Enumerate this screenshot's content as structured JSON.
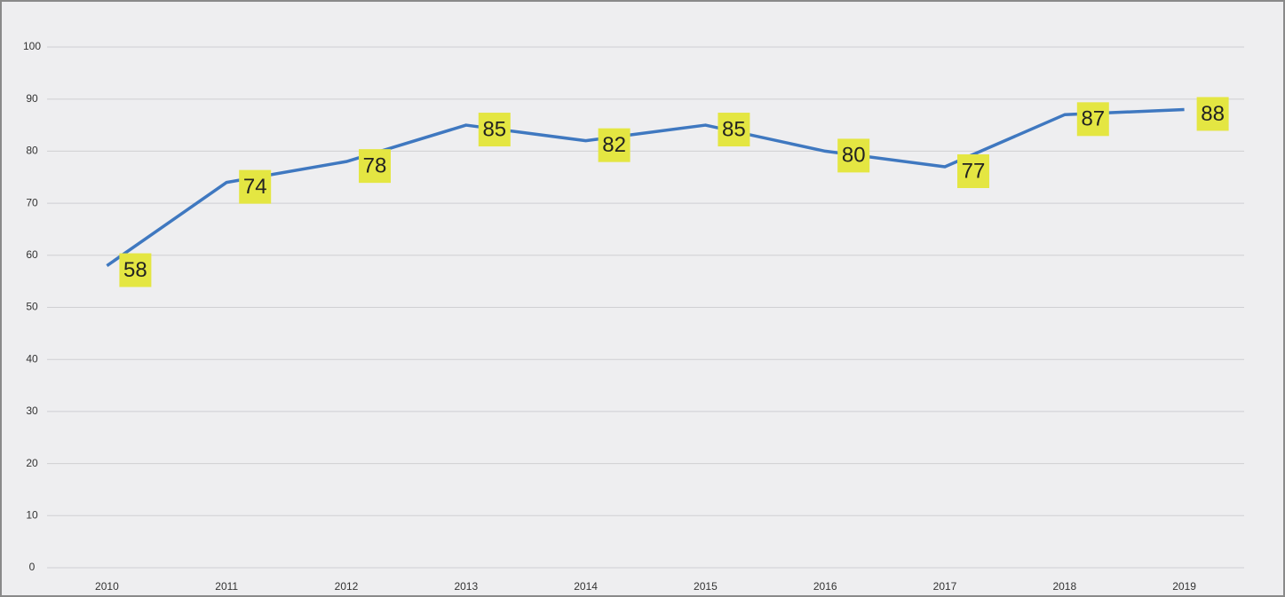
{
  "chart_data": {
    "type": "line",
    "categories": [
      "2010",
      "2011",
      "2012",
      "2013",
      "2014",
      "2015",
      "2016",
      "2017",
      "2018",
      "2019"
    ],
    "series": [
      {
        "name": null,
        "color": "#3f78c0",
        "values": [
          58,
          74,
          78,
          85,
          82,
          85,
          80,
          77,
          87,
          88
        ]
      }
    ],
    "ylim": [
      0,
      100
    ],
    "yticks": [
      0,
      10,
      20,
      30,
      40,
      50,
      60,
      70,
      80,
      90,
      100
    ],
    "grid": true,
    "label_color": "#e4e642"
  }
}
